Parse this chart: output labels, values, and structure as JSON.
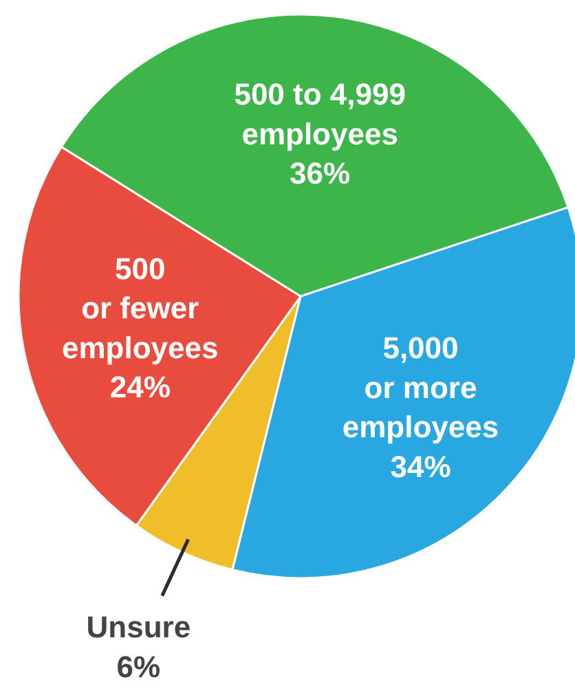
{
  "chart_data": {
    "type": "pie",
    "categories": [
      "500 to 4,999\nemployees",
      "5,000\nor more\nemployees",
      "Unsure",
      "500\nor fewer\nemployees"
    ],
    "values": [
      36,
      34,
      6,
      24
    ],
    "colors": [
      "#3db54a",
      "#29a7e1",
      "#f0be2a",
      "#e84c3e"
    ],
    "value_labels": [
      "36%",
      "34%",
      "6%",
      "24%"
    ]
  }
}
